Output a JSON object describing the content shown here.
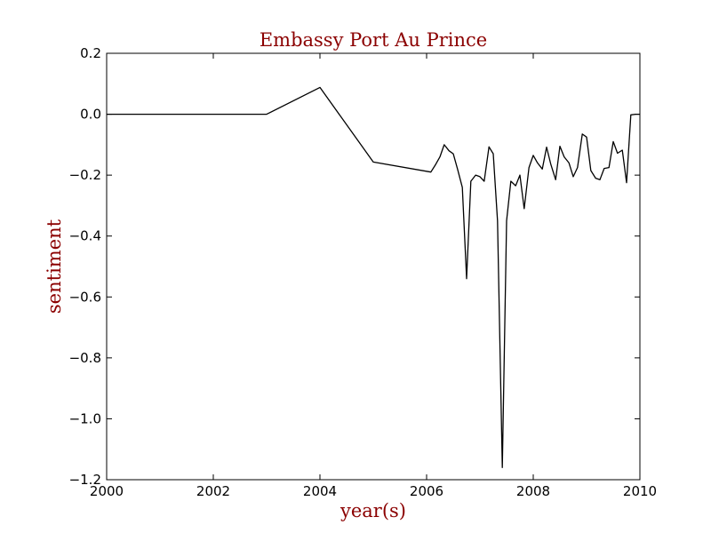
{
  "chart_data": {
    "type": "line",
    "title": "Embassy Port Au Prince",
    "xlabel": "year(s)",
    "ylabel": "sentiment",
    "xlim": [
      2000,
      2010
    ],
    "ylim": [
      -1.2,
      0.2
    ],
    "xticks": [
      2000,
      2002,
      2004,
      2006,
      2008,
      2010
    ],
    "xtick_labels": [
      "2000",
      "2002",
      "2004",
      "2006",
      "2008",
      "2010"
    ],
    "yticks": [
      0.2,
      0.0,
      -0.2,
      -0.4,
      -0.6,
      -0.8,
      -1.0,
      -1.2
    ],
    "ytick_labels": [
      "0.2",
      "0.0",
      "−0.2",
      "−0.4",
      "−0.6",
      "−0.8",
      "−1.0",
      "−1.2"
    ],
    "grid": false,
    "line_color": "#000000",
    "text_color": "#8b0000",
    "series": [
      {
        "x": [
          2000.0,
          2003.0,
          2004.0,
          2005.0,
          2006.08,
          2006.17,
          2006.25,
          2006.33,
          2006.42,
          2006.5,
          2006.58,
          2006.67,
          2006.75,
          2006.83,
          2006.92,
          2007.0,
          2007.08,
          2007.17,
          2007.25,
          2007.33,
          2007.42,
          2007.5,
          2007.58,
          2007.67,
          2007.75,
          2007.83,
          2007.92,
          2008.0,
          2008.08,
          2008.17,
          2008.25,
          2008.33,
          2008.42,
          2008.5,
          2008.58,
          2008.67,
          2008.75,
          2008.83,
          2008.92,
          2009.0,
          2009.08,
          2009.17,
          2009.25,
          2009.33,
          2009.42,
          2009.5,
          2009.58,
          2009.67,
          2009.75,
          2009.83,
          2009.92,
          2010.0
        ],
        "y": [
          0.0,
          0.0,
          0.088,
          -0.157,
          -0.19,
          -0.165,
          -0.14,
          -0.1,
          -0.12,
          -0.13,
          -0.18,
          -0.24,
          -0.54,
          -0.22,
          -0.2,
          -0.205,
          -0.22,
          -0.107,
          -0.13,
          -0.35,
          -1.16,
          -0.35,
          -0.22,
          -0.235,
          -0.2,
          -0.31,
          -0.175,
          -0.135,
          -0.16,
          -0.18,
          -0.108,
          -0.165,
          -0.215,
          -0.105,
          -0.14,
          -0.16,
          -0.205,
          -0.175,
          -0.065,
          -0.075,
          -0.185,
          -0.21,
          -0.215,
          -0.178,
          -0.175,
          -0.09,
          -0.128,
          -0.118,
          -0.225,
          -0.002,
          0.0,
          0.0
        ]
      }
    ]
  }
}
